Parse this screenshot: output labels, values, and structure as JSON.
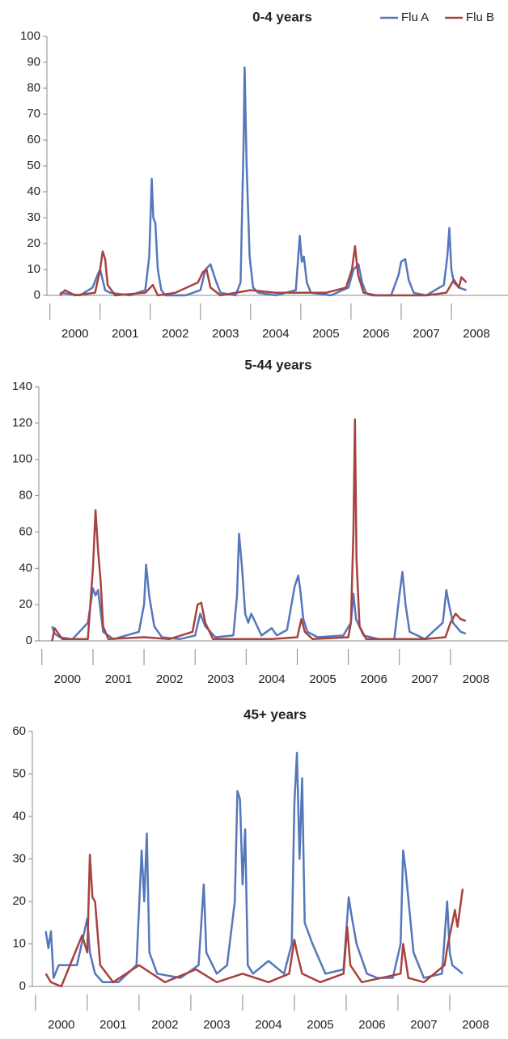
{
  "chart_data": [
    {
      "type": "line",
      "title": "0-4 years",
      "legend": "upper right",
      "xlim": [
        1999.94,
        2009.0
      ],
      "xticks": [
        2000,
        2001,
        2002,
        2003,
        2004,
        2005,
        2006,
        2007,
        2008
      ],
      "ylim": [
        0,
        100
      ],
      "yticks": [
        0,
        10,
        20,
        30,
        40,
        50,
        60,
        70,
        80,
        90,
        100
      ],
      "series": [
        {
          "name": "Flu A",
          "color": "#5577bb",
          "x": [
            2000.2,
            2000.6,
            2000.85,
            2000.95,
            2001.0,
            2001.05,
            2001.1,
            2001.2,
            2001.6,
            2001.9,
            2001.98,
            2002.03,
            2002.06,
            2002.1,
            2002.15,
            2002.22,
            2002.3,
            2002.7,
            2003.0,
            2003.1,
            2003.2,
            2003.3,
            2003.4,
            2003.7,
            2003.8,
            2003.86,
            2003.88,
            2003.92,
            2003.98,
            2004.05,
            2004.15,
            2004.5,
            2004.9,
            2004.98,
            2005.02,
            2005.06,
            2005.12,
            2005.2,
            2005.6,
            2005.95,
            2006.05,
            2006.15,
            2006.22,
            2006.3,
            2006.4,
            2006.8,
            2006.95,
            2007.0,
            2007.08,
            2007.15,
            2007.25,
            2007.5,
            2007.85,
            2007.92,
            2007.96,
            2008.0,
            2008.05,
            2008.15,
            2008.3
          ],
          "values": [
            1,
            0,
            3,
            8,
            10,
            6,
            2,
            1,
            0,
            2,
            15,
            45,
            30,
            28,
            10,
            2,
            0,
            0,
            2,
            10,
            12,
            6,
            1,
            0,
            5,
            60,
            88,
            50,
            15,
            3,
            1,
            0,
            2,
            23,
            13,
            15,
            5,
            1,
            0,
            3,
            10,
            12,
            5,
            1,
            0,
            0,
            8,
            13,
            14,
            6,
            1,
            0,
            4,
            15,
            26,
            10,
            5,
            3,
            2
          ]
        },
        {
          "name": "Flu B",
          "color": "#a8423e",
          "x": [
            2000.2,
            2000.3,
            2000.5,
            2000.9,
            2001.0,
            2001.05,
            2001.1,
            2001.15,
            2001.3,
            2001.9,
            2002.05,
            2002.15,
            2002.5,
            2002.95,
            2003.05,
            2003.12,
            2003.2,
            2003.4,
            2004.0,
            2004.5,
            2005.0,
            2005.5,
            2005.9,
            2006.02,
            2006.08,
            2006.14,
            2006.25,
            2006.5,
            2007.5,
            2007.9,
            2008.05,
            2008.15,
            2008.2,
            2008.3
          ],
          "values": [
            0,
            2,
            0,
            1,
            10,
            17,
            14,
            4,
            0,
            1,
            4,
            0,
            1,
            5,
            9,
            10,
            3,
            0,
            2,
            1,
            1,
            1,
            3,
            10,
            19,
            8,
            1,
            0,
            0,
            1,
            6,
            3,
            7,
            5
          ]
        }
      ]
    },
    {
      "type": "line",
      "title": "5-44 years",
      "xlim": [
        1999.94,
        2009.0
      ],
      "xticks": [
        2000,
        2001,
        2002,
        2003,
        2004,
        2005,
        2006,
        2007,
        2008
      ],
      "ylim": [
        0,
        140
      ],
      "yticks": [
        0,
        20,
        40,
        60,
        80,
        100,
        120,
        140
      ],
      "series": [
        {
          "name": "Flu A",
          "color": "#5577bb",
          "x": [
            2000.2,
            2000.25,
            2000.35,
            2000.6,
            2000.9,
            2001.0,
            2001.05,
            2001.1,
            2001.2,
            2001.4,
            2001.9,
            2002.0,
            2002.04,
            2002.1,
            2002.2,
            2002.35,
            2002.7,
            2003.0,
            2003.1,
            2003.2,
            2003.4,
            2003.75,
            2003.82,
            2003.86,
            2003.92,
            2003.98,
            2004.04,
            2004.1,
            2004.3,
            2004.5,
            2004.6,
            2004.8,
            2004.95,
            2005.02,
            2005.06,
            2005.12,
            2005.2,
            2005.4,
            2005.9,
            2006.05,
            2006.1,
            2006.15,
            2006.3,
            2006.6,
            2006.9,
            2007.0,
            2007.06,
            2007.12,
            2007.2,
            2007.5,
            2007.85,
            2007.92,
            2007.97,
            2008.05,
            2008.2,
            2008.3
          ],
          "values": [
            8,
            4,
            2,
            1,
            10,
            29,
            25,
            28,
            5,
            1,
            5,
            20,
            42,
            25,
            8,
            2,
            1,
            3,
            15,
            8,
            2,
            3,
            25,
            59,
            40,
            15,
            10,
            15,
            3,
            7,
            3,
            6,
            30,
            36,
            28,
            12,
            5,
            2,
            3,
            10,
            26,
            12,
            3,
            1,
            1,
            25,
            38,
            20,
            5,
            1,
            10,
            28,
            20,
            10,
            5,
            4
          ]
        },
        {
          "name": "Flu B",
          "color": "#a8423e",
          "x": [
            2000.2,
            2000.25,
            2000.4,
            2000.9,
            2001.0,
            2001.05,
            2001.1,
            2001.15,
            2001.2,
            2001.3,
            2002.0,
            2002.5,
            2002.95,
            2003.05,
            2003.12,
            2003.2,
            2003.35,
            2004.0,
            2004.5,
            2005.0,
            2005.08,
            2005.15,
            2005.3,
            2006.0,
            2006.05,
            2006.1,
            2006.13,
            2006.16,
            2006.22,
            2006.35,
            2007.0,
            2007.5,
            2007.9,
            2008.0,
            2008.1,
            2008.2,
            2008.3
          ],
          "values": [
            0,
            7,
            1,
            1,
            40,
            72,
            50,
            33,
            8,
            1,
            2,
            1,
            5,
            20,
            21,
            10,
            1,
            1,
            1,
            2,
            12,
            5,
            1,
            2,
            10,
            60,
            122,
            45,
            8,
            1,
            1,
            1,
            2,
            10,
            15,
            12,
            11
          ]
        }
      ]
    },
    {
      "type": "line",
      "title": "45+ years",
      "xlim": [
        1999.94,
        2009.0
      ],
      "xticks": [
        2000,
        2001,
        2002,
        2003,
        2004,
        2005,
        2006,
        2007,
        2008
      ],
      "ylim": [
        0,
        60
      ],
      "yticks": [
        0,
        10,
        20,
        30,
        40,
        50,
        60
      ],
      "series": [
        {
          "name": "Flu A",
          "color": "#5577bb",
          "x": [
            2000.2,
            2000.25,
            2000.3,
            2000.35,
            2000.45,
            2000.8,
            2001.0,
            2001.05,
            2001.15,
            2001.3,
            2001.6,
            2001.95,
            2002.05,
            2002.1,
            2002.15,
            2002.2,
            2002.35,
            2002.8,
            2003.15,
            2003.25,
            2003.3,
            2003.5,
            2003.7,
            2003.85,
            2003.9,
            2003.95,
            2004.0,
            2004.05,
            2004.1,
            2004.2,
            2004.5,
            2004.8,
            2004.95,
            2005.0,
            2005.05,
            2005.1,
            2005.15,
            2005.2,
            2005.35,
            2005.6,
            2005.95,
            2006.05,
            2006.1,
            2006.2,
            2006.4,
            2006.6,
            2006.9,
            2007.05,
            2007.1,
            2007.15,
            2007.3,
            2007.5,
            2007.85,
            2007.95,
            2008.0,
            2008.05,
            2008.15,
            2008.25
          ],
          "values": [
            13,
            9,
            13,
            2,
            5,
            5,
            16,
            8,
            3,
            1,
            1,
            5,
            32,
            20,
            36,
            8,
            3,
            2,
            5,
            24,
            8,
            3,
            5,
            20,
            46,
            44,
            24,
            37,
            5,
            3,
            6,
            3,
            10,
            43,
            55,
            30,
            49,
            15,
            10,
            3,
            4,
            21,
            17,
            10,
            3,
            2,
            2,
            10,
            32,
            27,
            8,
            2,
            3,
            20,
            8,
            5,
            4,
            3
          ]
        },
        {
          "name": "Flu B",
          "color": "#a8423e",
          "x": [
            2000.2,
            2000.3,
            2000.5,
            2000.9,
            2001.0,
            2001.05,
            2001.1,
            2001.15,
            2001.25,
            2001.5,
            2002.0,
            2002.5,
            2003.1,
            2003.5,
            2004.0,
            2004.5,
            2004.9,
            2005.0,
            2005.05,
            2005.15,
            2005.5,
            2005.95,
            2006.02,
            2006.08,
            2006.3,
            2007.05,
            2007.1,
            2007.2,
            2007.5,
            2007.9,
            2007.95,
            2008.0,
            2008.1,
            2008.15,
            2008.25
          ],
          "values": [
            3,
            1,
            0,
            12,
            8,
            31,
            21,
            20,
            5,
            1,
            5,
            1,
            4,
            1,
            3,
            1,
            3,
            11,
            8,
            3,
            1,
            3,
            14,
            5,
            1,
            3,
            10,
            2,
            1,
            5,
            9,
            12,
            18,
            14,
            23
          ]
        }
      ]
    }
  ]
}
